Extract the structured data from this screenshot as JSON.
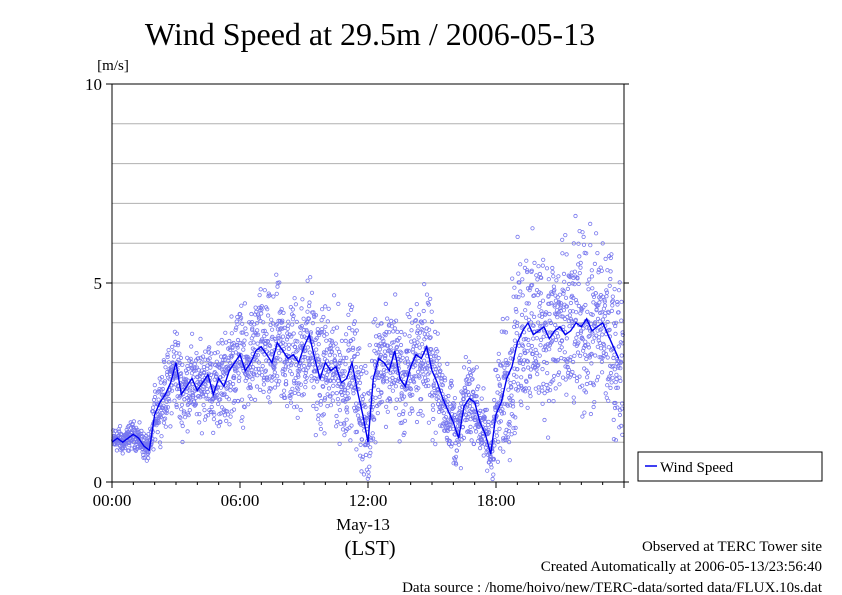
{
  "chart_data": {
    "type": "scatter",
    "title": "Wind Speed at 29.5m / 2006-05-13",
    "ylabel": "[m/s]",
    "ylim": [
      0,
      10
    ],
    "xlim_hours": [
      0,
      24
    ],
    "y_ticks": [
      "0",
      "5",
      "10"
    ],
    "x_ticks": [
      "00:00",
      "06:00",
      "12:00",
      "18:00"
    ],
    "x_tick_hours": [
      0,
      6,
      12,
      18
    ],
    "date_label": "May-13",
    "xlabel": "(LST)",
    "grid": "horizontal",
    "legend_placement": "right",
    "series": [
      {
        "name": "Wind Speed",
        "kind": "line+scatter",
        "color": "#0000ee",
        "point_color": "#7777ee",
        "x_hours": [
          0.0,
          0.25,
          0.5,
          0.75,
          1.0,
          1.25,
          1.5,
          1.75,
          2.0,
          2.25,
          2.5,
          2.75,
          3.0,
          3.25,
          3.5,
          3.75,
          4.0,
          4.25,
          4.5,
          4.75,
          5.0,
          5.25,
          5.5,
          5.75,
          6.0,
          6.25,
          6.5,
          6.75,
          7.0,
          7.25,
          7.5,
          7.75,
          8.0,
          8.25,
          8.5,
          8.75,
          9.0,
          9.25,
          9.5,
          9.75,
          10.0,
          10.25,
          10.5,
          10.75,
          11.0,
          11.25,
          11.5,
          11.75,
          12.0,
          12.25,
          12.5,
          12.75,
          13.0,
          13.25,
          13.5,
          13.75,
          14.0,
          14.25,
          14.5,
          14.75,
          15.0,
          15.25,
          15.5,
          15.75,
          16.0,
          16.25,
          16.5,
          16.75,
          17.0,
          17.25,
          17.5,
          17.75,
          18.0,
          18.25,
          18.5,
          18.75,
          19.0,
          19.25,
          19.5,
          19.75,
          20.0,
          20.25,
          20.5,
          20.75,
          21.0,
          21.25,
          21.5,
          21.75,
          22.0,
          22.25,
          22.5,
          22.75,
          23.0,
          23.25,
          23.5,
          23.75
        ],
        "values": [
          1.0,
          1.1,
          1.0,
          1.1,
          1.2,
          1.1,
          0.9,
          0.8,
          1.7,
          2.0,
          2.2,
          2.5,
          3.0,
          2.2,
          2.4,
          2.6,
          2.3,
          2.5,
          2.7,
          2.2,
          2.6,
          2.4,
          2.8,
          3.0,
          3.2,
          2.8,
          3.0,
          3.3,
          3.4,
          3.2,
          3.0,
          3.5,
          3.3,
          3.1,
          3.2,
          3.0,
          3.4,
          3.7,
          3.1,
          2.6,
          3.0,
          2.8,
          2.9,
          2.5,
          2.6,
          3.0,
          2.3,
          1.7,
          1.0,
          2.6,
          3.1,
          3.0,
          2.8,
          3.3,
          2.6,
          2.4,
          2.9,
          3.2,
          3.1,
          3.4,
          2.8,
          2.5,
          2.1,
          1.8,
          1.5,
          1.1,
          1.9,
          2.1,
          2.0,
          1.5,
          1.2,
          0.7,
          1.7,
          2.0,
          2.6,
          2.9,
          3.5,
          3.8,
          4.0,
          3.7,
          3.8,
          3.9,
          3.6,
          3.8,
          3.9,
          3.7,
          3.8,
          4.0,
          3.9,
          4.1,
          3.8,
          3.9,
          4.0,
          3.7,
          3.4,
          3.1
        ],
        "spread": [
          0.2,
          0.2,
          0.2,
          0.2,
          0.2,
          0.2,
          0.2,
          0.2,
          0.4,
          0.5,
          0.5,
          0.6,
          0.7,
          0.6,
          0.6,
          0.6,
          0.6,
          0.6,
          0.6,
          0.6,
          0.7,
          0.7,
          0.7,
          0.8,
          0.8,
          0.8,
          0.8,
          0.8,
          0.9,
          0.9,
          0.9,
          0.9,
          0.9,
          0.9,
          0.9,
          0.9,
          0.9,
          0.9,
          0.9,
          0.9,
          0.9,
          0.9,
          0.9,
          0.9,
          0.9,
          0.9,
          0.9,
          0.9,
          0.9,
          0.9,
          0.9,
          0.9,
          0.9,
          0.9,
          0.9,
          0.9,
          0.9,
          0.9,
          0.9,
          0.9,
          0.8,
          0.8,
          0.7,
          0.7,
          0.6,
          0.6,
          0.6,
          0.6,
          0.6,
          0.6,
          0.5,
          0.5,
          0.9,
          1.0,
          1.1,
          1.2,
          1.3,
          1.3,
          1.3,
          1.3,
          1.3,
          1.3,
          1.3,
          1.3,
          1.3,
          1.3,
          1.3,
          1.3,
          1.3,
          1.3,
          1.3,
          1.3,
          1.3,
          1.3,
          1.2,
          1.2
        ]
      }
    ]
  },
  "footer": {
    "line1": "Observed at TERC Tower site",
    "line2": "Created Automatically at 2006-05-13/23:56:40",
    "line3": "Data source : /home/hoivo/new/TERC-data/sorted  data/FLUX.10s.dat"
  }
}
